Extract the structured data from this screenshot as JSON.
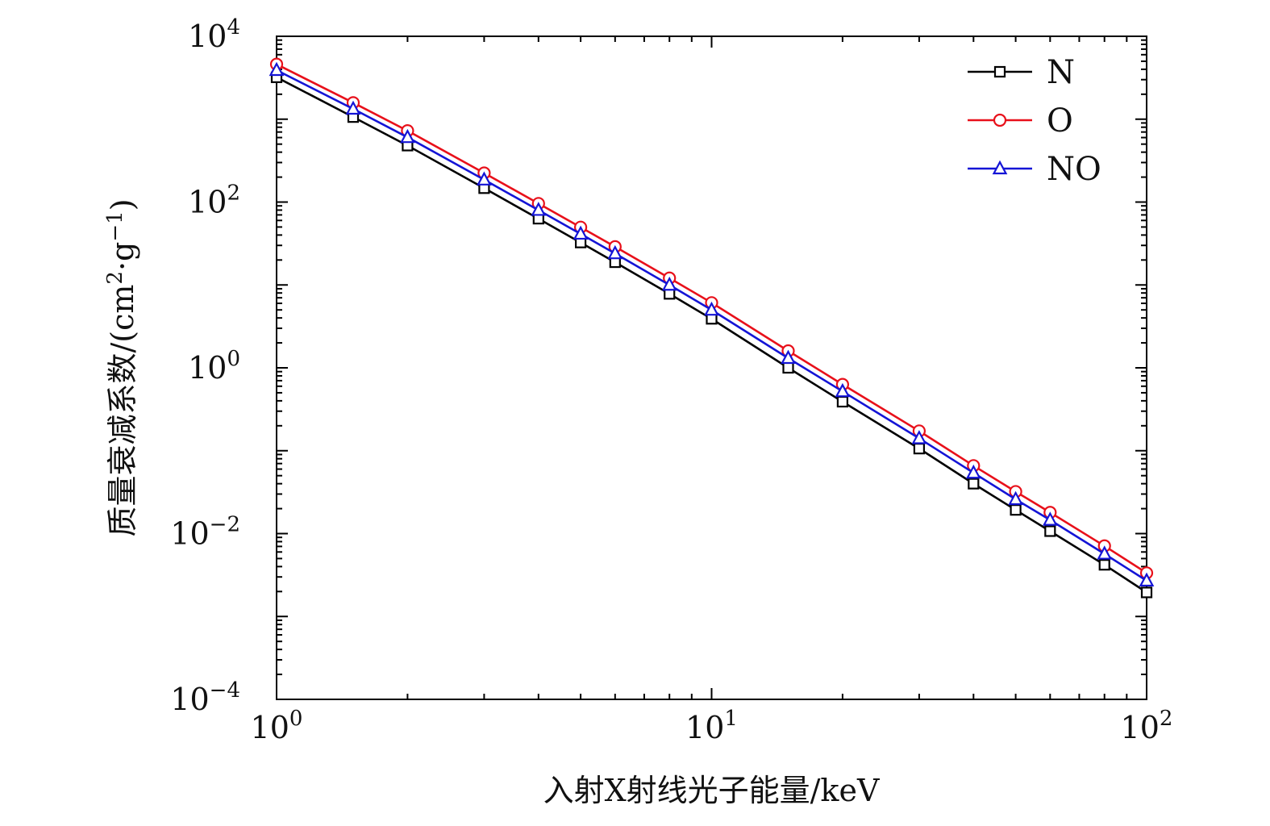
{
  "chart_data": {
    "type": "line",
    "xscale": "log",
    "yscale": "log",
    "xlim": [
      1,
      100
    ],
    "ylim": [
      0.0001,
      10000
    ],
    "xlabel": "入射X射线光子能量/keV",
    "ylabel": "质量衰减系数/(cm²·g⁻¹)",
    "ylabel_parts": {
      "pre": "质量衰减系数/(cm",
      "sup1": "2",
      "mid": "·g",
      "sup2": "−1",
      "post": ")"
    },
    "x_ticks": [
      {
        "value": 1,
        "base": "10",
        "exp": "0"
      },
      {
        "value": 10,
        "base": "10",
        "exp": "1"
      },
      {
        "value": 100,
        "base": "10",
        "exp": "2"
      }
    ],
    "y_ticks": [
      {
        "value": 0.0001,
        "base": "10",
        "exp": "−4"
      },
      {
        "value": 0.01,
        "base": "10",
        "exp": "−2"
      },
      {
        "value": 1,
        "base": "10",
        "exp": "0"
      },
      {
        "value": 100,
        "base": "10",
        "exp": "2"
      },
      {
        "value": 10000,
        "base": "10",
        "exp": "4"
      }
    ],
    "x": [
      1,
      1.5,
      2,
      3,
      4,
      5,
      6,
      8,
      10,
      15,
      20,
      30,
      40,
      50,
      60,
      80,
      100
    ],
    "legend_position": "top-right",
    "series": [
      {
        "name": "N",
        "color": "#000000",
        "marker": "square",
        "values": [
          3200,
          1060,
          480,
          147,
          63,
          32.5,
          18.8,
          7.8,
          3.9,
          1.0,
          0.39,
          0.106,
          0.04,
          0.0193,
          0.0107,
          0.0042,
          0.00195
        ]
      },
      {
        "name": "O",
        "color": "#e8101a",
        "marker": "circle",
        "values": [
          4600,
          1580,
          725,
          224,
          96,
          49.7,
          28.9,
          12.1,
          6.1,
          1.6,
          0.63,
          0.173,
          0.066,
          0.0321,
          0.018,
          0.0071,
          0.00335
        ]
      },
      {
        "name": "NO",
        "color": "#1414d6",
        "marker": "triangle",
        "values": [
          3900,
          1330,
          605,
          186,
          80,
          41.3,
          24.0,
          10.0,
          5.0,
          1.31,
          0.52,
          0.141,
          0.054,
          0.0259,
          0.0146,
          0.0057,
          0.0027
        ]
      }
    ]
  }
}
